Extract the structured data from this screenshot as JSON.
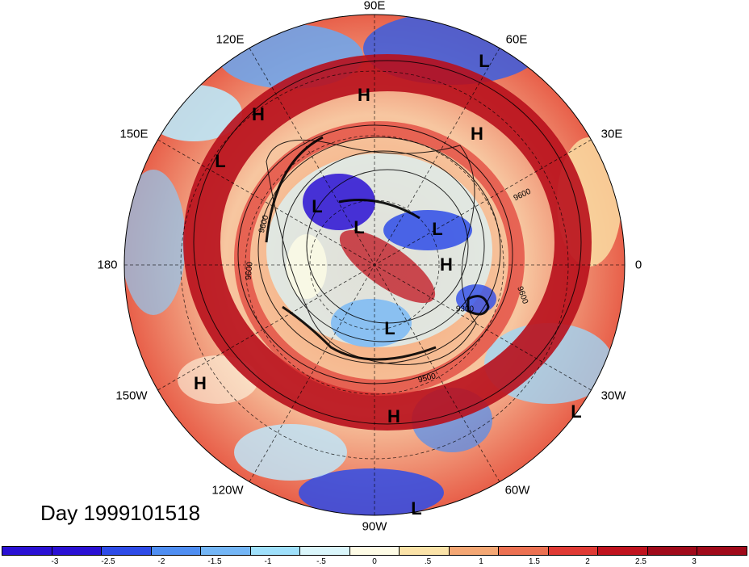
{
  "title": "Day 1999101518",
  "longitude_labels": {
    "lon_90E": "90E",
    "lon_60E": "60E",
    "lon_30E": "30E",
    "lon_0": "0",
    "lon_30W": "30W",
    "lon_60W": "60W",
    "lon_90W": "90W",
    "lon_120W": "120W",
    "lon_150W": "150W",
    "lon_180": "180",
    "lon_150E": "150E",
    "lon_120E": "120E"
  },
  "pressure_centers": {
    "c1": "L",
    "c2": "H",
    "c3": "H",
    "c4": "H",
    "c5": "L",
    "c6": "H",
    "c7": "L",
    "c8": "L",
    "c9": "L",
    "c10": "H",
    "c11": "L",
    "c12": "H",
    "c13": "H",
    "c14": "L",
    "c15": "L"
  },
  "contour_labels": {
    "k1": "9600",
    "k2": "9600",
    "k3": "9600",
    "k4": "9500",
    "k5": "9300",
    "k6": "9600"
  },
  "colorbar": {
    "ticks": [
      "-3",
      "-2.5",
      "-2",
      "-1.5",
      "-1",
      "-.5",
      "0",
      ".5",
      "1",
      "1.5",
      "2",
      "2.5",
      "3"
    ],
    "colors": [
      "#2a10d4",
      "#2e4ce8",
      "#4f8ef2",
      "#74b6f6",
      "#9fe0fb",
      "#daf6fb",
      "#fefce6",
      "#fbe3a8",
      "#f4a774",
      "#ec7152",
      "#e03a35",
      "#c0131e",
      "#a00a1a"
    ]
  }
}
